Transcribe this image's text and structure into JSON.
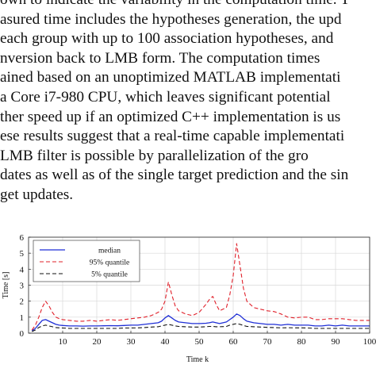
{
  "paragraph": {
    "lines": [
      "own to indicate the variability in the computation time. T",
      "asured time includes the hypotheses generation, the upd",
      "each group with up to 100 association hypotheses, and",
      "nversion back to LMB form. The computation times",
      "ained based on an unoptimized MATLAB implementati",
      "a Core i7-980 CPU, which leaves significant potential",
      "ther speed up if an optimized C++ implementation is us",
      "ese results suggest that a real-time capable implementati",
      " LMB filter is possible by parallelization of the gro",
      "dates as well as of the single target prediction and the sin",
      "get updates."
    ]
  },
  "chart_data": {
    "type": "line",
    "xlabel": "Time k",
    "ylabel": "Time [s]",
    "xlim": [
      0,
      100
    ],
    "ylim": [
      0,
      6
    ],
    "xticks": [
      10,
      20,
      30,
      40,
      50,
      60,
      70,
      80,
      90,
      100
    ],
    "yticks": [
      0,
      1,
      2,
      3,
      4,
      5,
      6
    ],
    "grid": true,
    "legend_position": "top-left",
    "x": [
      1,
      2,
      3,
      4,
      5,
      6,
      7,
      8,
      9,
      10,
      12,
      14,
      16,
      18,
      20,
      22,
      24,
      26,
      28,
      30,
      32,
      34,
      36,
      38,
      39,
      40,
      41,
      42,
      43,
      44,
      46,
      48,
      50,
      52,
      53,
      54,
      55,
      56,
      58,
      59,
      60,
      61,
      62,
      63,
      64,
      66,
      68,
      70,
      72,
      74,
      76,
      78,
      80,
      82,
      84,
      86,
      88,
      90,
      92,
      94,
      96,
      98,
      100
    ],
    "series": [
      {
        "name": "median",
        "style": "solid",
        "color": "#1f2fd6",
        "values": [
          0.15,
          0.3,
          0.55,
          0.8,
          0.85,
          0.75,
          0.65,
          0.55,
          0.5,
          0.48,
          0.45,
          0.45,
          0.44,
          0.45,
          0.45,
          0.46,
          0.47,
          0.46,
          0.48,
          0.5,
          0.5,
          0.55,
          0.6,
          0.65,
          0.75,
          0.95,
          1.1,
          0.95,
          0.8,
          0.7,
          0.65,
          0.6,
          0.6,
          0.62,
          0.65,
          0.7,
          0.65,
          0.6,
          0.7,
          0.85,
          1.0,
          1.2,
          1.1,
          0.9,
          0.75,
          0.65,
          0.6,
          0.55,
          0.55,
          0.5,
          0.55,
          0.5,
          0.5,
          0.5,
          0.45,
          0.45,
          0.5,
          0.45,
          0.5,
          0.45,
          0.45,
          0.45,
          0.45
        ]
      },
      {
        "name": "95% quantile",
        "style": "dashed",
        "color": "#e0202a",
        "values": [
          0.2,
          0.5,
          1.0,
          1.6,
          2.0,
          1.7,
          1.3,
          1.0,
          0.9,
          0.85,
          0.8,
          0.75,
          0.75,
          0.8,
          0.75,
          0.8,
          0.85,
          0.8,
          0.85,
          0.9,
          0.95,
          1.0,
          1.1,
          1.3,
          1.5,
          2.0,
          3.2,
          2.4,
          1.7,
          1.4,
          1.2,
          1.1,
          1.3,
          1.8,
          2.1,
          2.3,
          1.8,
          1.4,
          1.6,
          2.4,
          3.6,
          5.6,
          4.2,
          2.8,
          2.0,
          1.6,
          1.5,
          1.4,
          1.35,
          1.2,
          1.0,
          0.95,
          1.0,
          1.0,
          0.85,
          0.85,
          0.9,
          0.9,
          0.9,
          0.85,
          0.8,
          0.8,
          0.8
        ]
      },
      {
        "name": "5% quantile",
        "style": "dashed",
        "color": "#111111",
        "values": [
          0.1,
          0.2,
          0.35,
          0.45,
          0.5,
          0.45,
          0.4,
          0.35,
          0.33,
          0.32,
          0.3,
          0.3,
          0.3,
          0.3,
          0.3,
          0.3,
          0.3,
          0.3,
          0.32,
          0.32,
          0.33,
          0.35,
          0.38,
          0.4,
          0.45,
          0.5,
          0.55,
          0.5,
          0.45,
          0.42,
          0.4,
          0.38,
          0.38,
          0.4,
          0.42,
          0.42,
          0.4,
          0.4,
          0.42,
          0.5,
          0.55,
          0.6,
          0.55,
          0.48,
          0.42,
          0.4,
          0.38,
          0.36,
          0.35,
          0.33,
          0.34,
          0.33,
          0.33,
          0.32,
          0.3,
          0.3,
          0.3,
          0.3,
          0.3,
          0.3,
          0.3,
          0.3,
          0.3
        ]
      }
    ],
    "colors": {
      "grid": "#d8d8d8",
      "axis": "#222222"
    }
  }
}
